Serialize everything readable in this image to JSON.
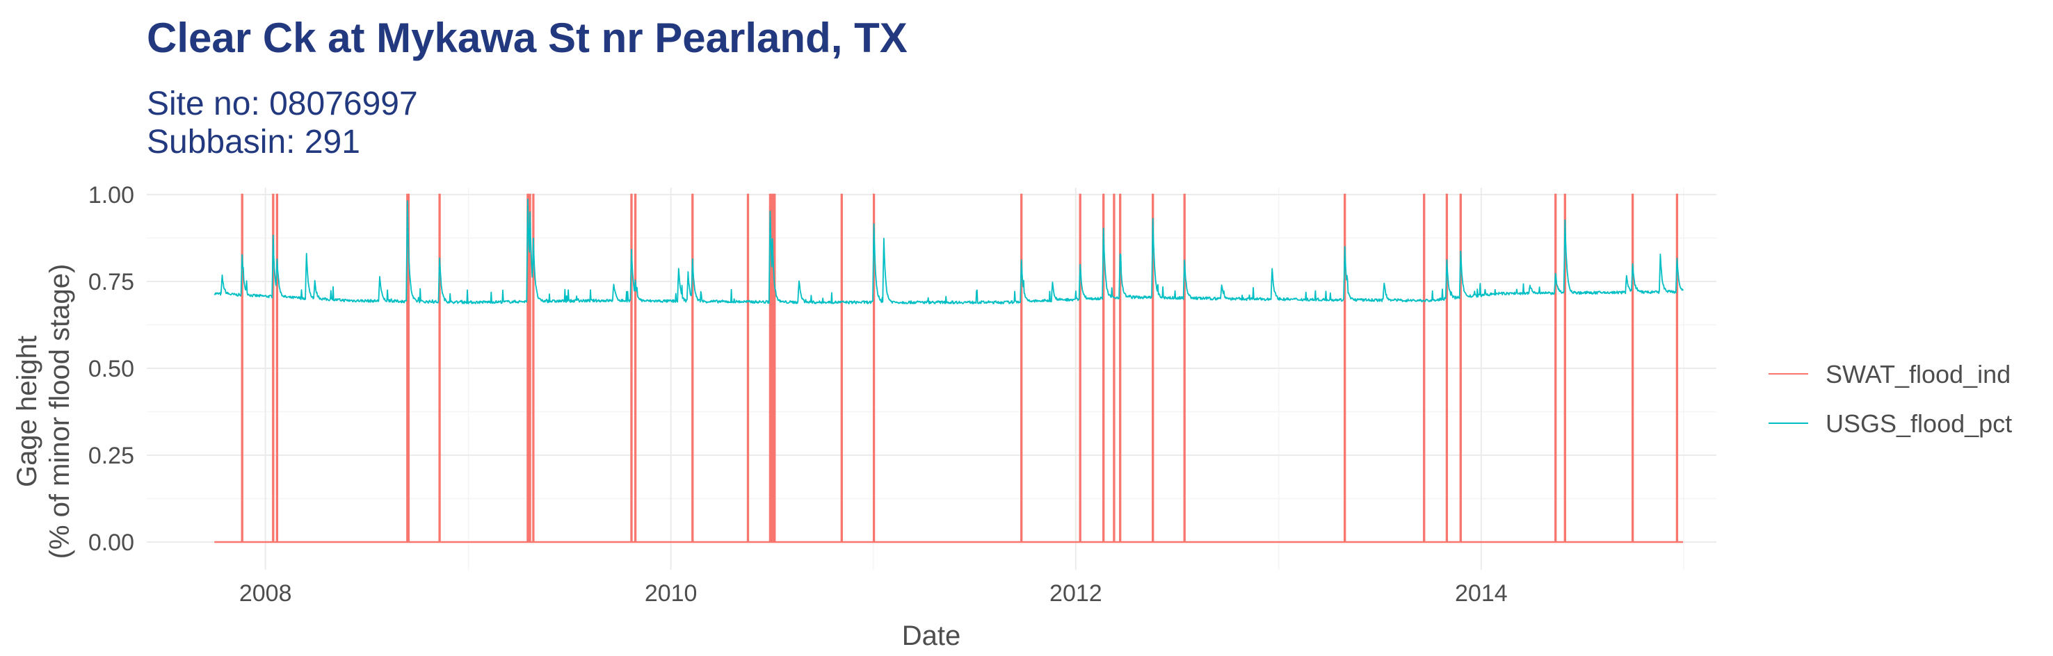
{
  "chart_data": {
    "type": "line",
    "title": "Clear Ck at Mykawa St nr Pearland, TX",
    "subtitle_lines": [
      "Site no: 08076997",
      "Subbasin: 291"
    ],
    "xlabel": "Date",
    "ylabel_lines": [
      "Gage height",
      "(% of minor flood stage)"
    ],
    "xlim": [
      "2007-06-01",
      "2015-03-01"
    ],
    "ylim": [
      -0.08,
      1.02
    ],
    "x_ticks": [
      {
        "date": "2008-01-01",
        "label": "2008"
      },
      {
        "date": "2010-01-01",
        "label": "2010"
      },
      {
        "date": "2012-01-01",
        "label": "2012"
      },
      {
        "date": "2014-01-01",
        "label": "2014"
      }
    ],
    "y_ticks": [
      {
        "value": 0.0,
        "label": "0.00"
      },
      {
        "value": 0.25,
        "label": "0.25"
      },
      {
        "value": 0.5,
        "label": "0.50"
      },
      {
        "value": 0.75,
        "label": "0.75"
      },
      {
        "value": 1.0,
        "label": "1.00"
      }
    ],
    "grid": true,
    "legend_position": "right",
    "series": [
      {
        "name": "SWAT_flood_ind",
        "color": "#f8766d",
        "start": "2007-10-01",
        "end": "2014-12-31",
        "baseline": 0,
        "flood_days": [
          "2007-11-20",
          "2008-01-15",
          "2008-01-22",
          "2008-09-13",
          "2008-09-15",
          "2008-11-10",
          "2009-04-18",
          "2009-04-22",
          "2009-04-28",
          "2009-10-22",
          "2009-10-29",
          "2010-02-09",
          "2010-05-20",
          "2010-06-29",
          "2010-07-03",
          "2010-07-07",
          "2010-11-05",
          "2011-01-02",
          "2011-09-25",
          "2012-01-09",
          "2012-02-20",
          "2012-03-10",
          "2012-03-21",
          "2012-05-19",
          "2012-07-15",
          "2013-04-30",
          "2013-09-20",
          "2013-10-31",
          "2013-11-25",
          "2014-05-15",
          "2014-06-01",
          "2014-10-01",
          "2014-12-20"
        ]
      },
      {
        "name": "USGS_flood_pct",
        "color": "#00bfc4",
        "start": "2007-10-01",
        "end": "2014-12-31",
        "base_points": [
          [
            "2007-10-01",
            0.715
          ],
          [
            "2008-06-01",
            0.695
          ],
          [
            "2009-01-01",
            0.69
          ],
          [
            "2009-09-01",
            0.695
          ],
          [
            "2010-09-01",
            0.69
          ],
          [
            "2011-09-01",
            0.69
          ],
          [
            "2012-04-01",
            0.705
          ],
          [
            "2012-10-01",
            0.7
          ],
          [
            "2013-10-01",
            0.695
          ],
          [
            "2014-02-01",
            0.715
          ],
          [
            "2014-12-31",
            0.72
          ]
        ],
        "peaks": [
          [
            "2007-10-15",
            0.765
          ],
          [
            "2007-11-20",
            0.825
          ],
          [
            "2008-01-15",
            0.865
          ],
          [
            "2008-01-22",
            0.815
          ],
          [
            "2008-03-15",
            0.83
          ],
          [
            "2008-03-30",
            0.75
          ],
          [
            "2008-07-25",
            0.765
          ],
          [
            "2008-09-13",
            0.985
          ],
          [
            "2008-11-10",
            0.82
          ],
          [
            "2009-04-18",
            0.985
          ],
          [
            "2009-04-22",
            0.95
          ],
          [
            "2009-04-28",
            0.875
          ],
          [
            "2009-09-20",
            0.745
          ],
          [
            "2009-10-22",
            0.84
          ],
          [
            "2009-10-29",
            0.75
          ],
          [
            "2010-01-15",
            0.79
          ],
          [
            "2010-02-01",
            0.775
          ],
          [
            "2010-02-09",
            0.815
          ],
          [
            "2010-06-29",
            0.955
          ],
          [
            "2010-07-03",
            0.87
          ],
          [
            "2010-08-20",
            0.755
          ],
          [
            "2011-01-02",
            0.915
          ],
          [
            "2011-01-20",
            0.87
          ],
          [
            "2011-09-25",
            0.81
          ],
          [
            "2011-11-20",
            0.745
          ],
          [
            "2012-01-09",
            0.8
          ],
          [
            "2012-02-20",
            0.9
          ],
          [
            "2012-03-21",
            0.83
          ],
          [
            "2012-05-19",
            0.935
          ],
          [
            "2012-07-15",
            0.81
          ],
          [
            "2012-09-20",
            0.74
          ],
          [
            "2012-12-20",
            0.79
          ],
          [
            "2013-04-30",
            0.85
          ],
          [
            "2013-07-10",
            0.745
          ],
          [
            "2013-10-31",
            0.81
          ],
          [
            "2013-11-25",
            0.84
          ],
          [
            "2014-03-30",
            0.74
          ],
          [
            "2014-05-15",
            0.77
          ],
          [
            "2014-06-01",
            0.93
          ],
          [
            "2014-09-20",
            0.77
          ],
          [
            "2014-10-01",
            0.8
          ],
          [
            "2014-11-20",
            0.825
          ],
          [
            "2014-12-20",
            0.815
          ]
        ]
      }
    ]
  }
}
